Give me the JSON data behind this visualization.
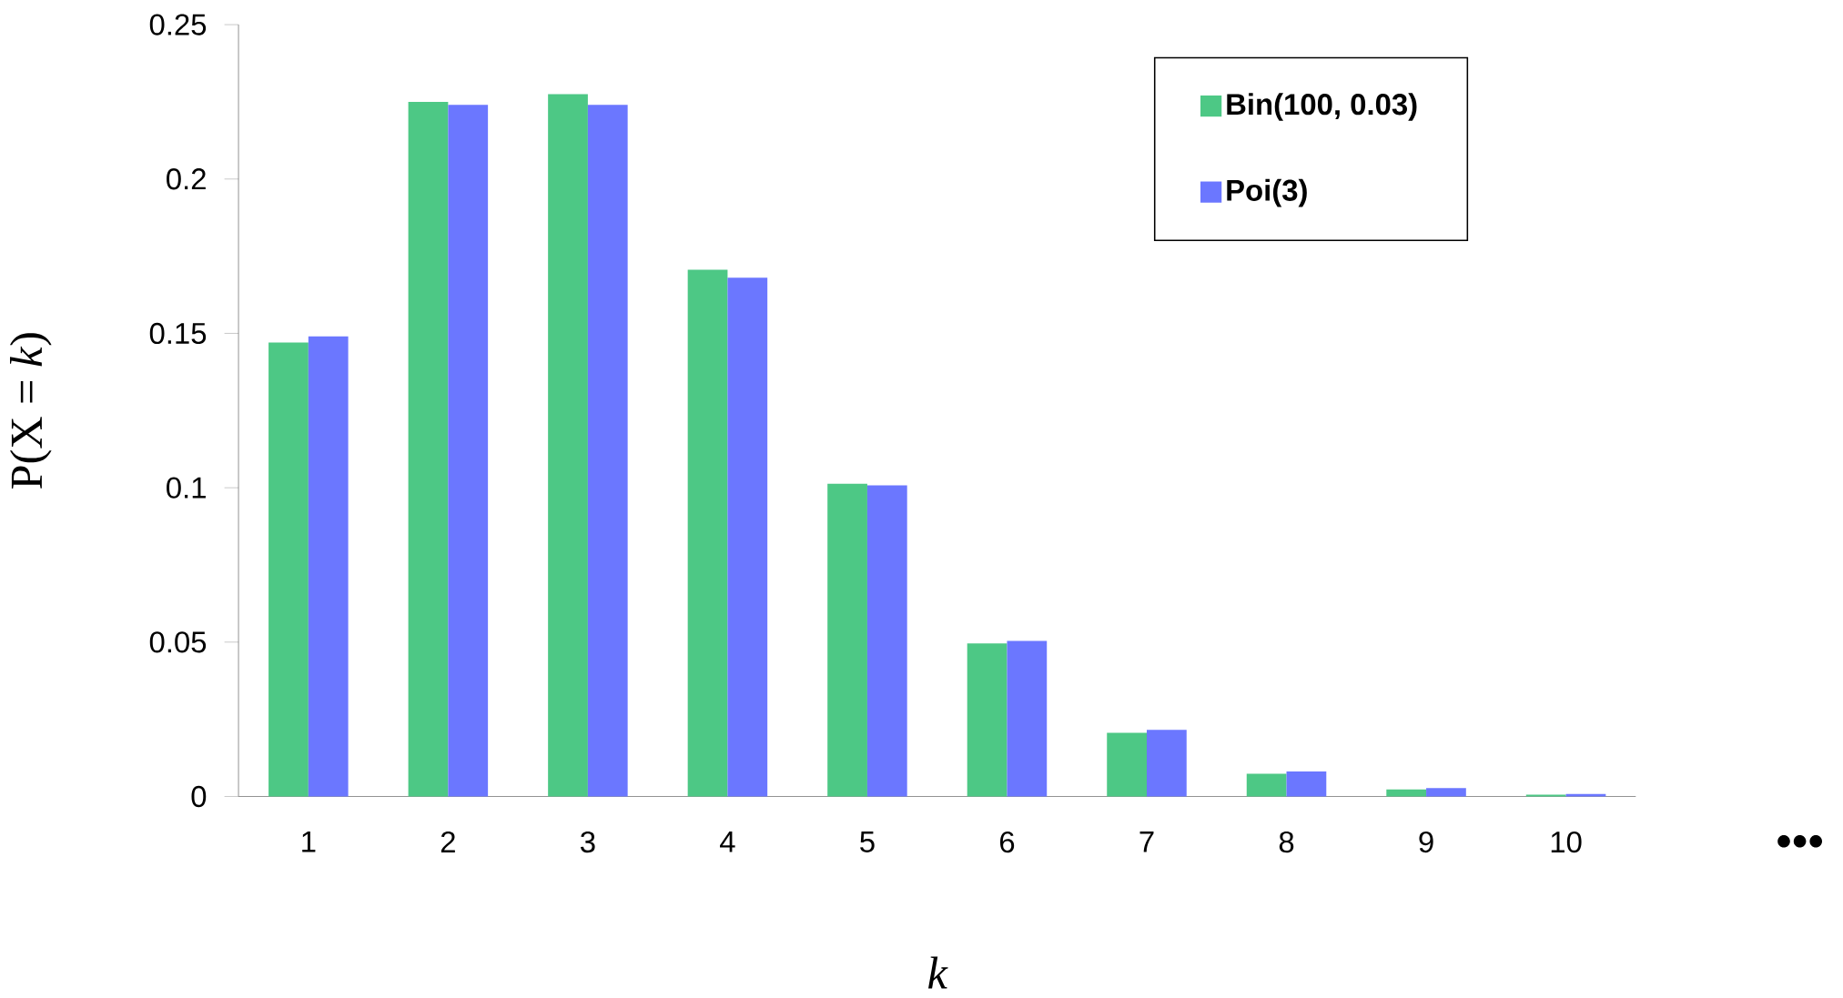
{
  "chart_data": {
    "type": "bar",
    "xlabel": "k",
    "ylabel": "P(X = *k*)",
    "categories": [
      "1",
      "2",
      "3",
      "4",
      "5",
      "6",
      "7",
      "8",
      "9",
      "10"
    ],
    "series": [
      {
        "name": "Bin(100, 0.03)",
        "color": "#4dc885",
        "values": [
          0.147,
          0.225,
          0.2275,
          0.1706,
          0.1013,
          0.0496,
          0.0206,
          0.0074,
          0.0023,
          0.0006
        ]
      },
      {
        "name": "Poi(3)",
        "color": "#6b77ff",
        "values": [
          0.149,
          0.224,
          0.224,
          0.168,
          0.1008,
          0.0504,
          0.0216,
          0.0081,
          0.0027,
          0.0008
        ]
      }
    ],
    "ylim": [
      0,
      0.25
    ],
    "yticks": [
      0,
      0.05,
      0.1,
      0.15,
      0.2,
      0.25
    ],
    "grid": false,
    "legend": "top right",
    "annotations": [
      "•••"
    ]
  }
}
